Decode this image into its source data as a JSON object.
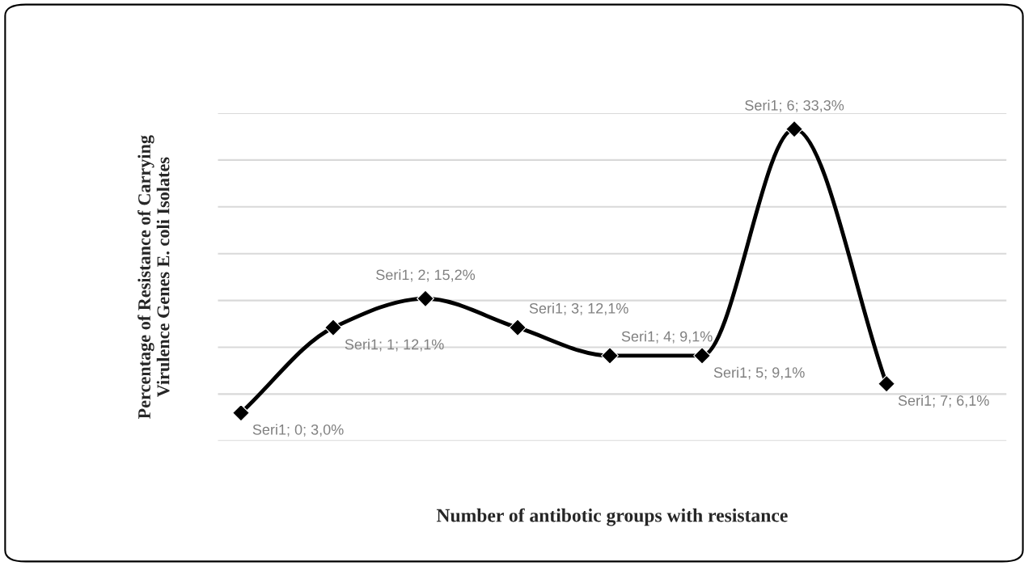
{
  "chart_data": {
    "type": "line",
    "xlabel": "Number of antibotic groups with resistance",
    "ylabel": "Percentage of Resistance of Carrying\nVirulence Genes E. coli Isolates",
    "categories": [
      null,
      null,
      null,
      null,
      null,
      null,
      null,
      null
    ],
    "values": [
      3.0,
      12.1,
      15.2,
      12.1,
      9.1,
      9.1,
      33.3,
      6.1
    ],
    "value_labels": [
      "Seri1; 0; 3,0%",
      "Seri1; 1; 12,1%",
      "Seri1; 2; 15,2%",
      "Seri1; 3; 12,1%",
      "Seri1; 4; 9,1%",
      "Seri1; 5; 9,1%",
      "Seri1; 6; 33,3%",
      "Seri1; 7; 6,1%"
    ],
    "color": "#000000",
    "marker": "diamond",
    "line_style": "solid",
    "ylim": [
      0,
      35
    ],
    "yticks": [
      {
        "value": 0,
        "label": null
      },
      {
        "value": 5,
        "label": null
      },
      {
        "value": 10,
        "label": null
      },
      {
        "value": 15,
        "label": null
      },
      {
        "value": 20,
        "label": null
      },
      {
        "value": 25,
        "label": null
      },
      {
        "value": 30,
        "label": null
      },
      {
        "value": 35,
        "label": null
      }
    ],
    "grid": "y",
    "tick_labels": false
  }
}
